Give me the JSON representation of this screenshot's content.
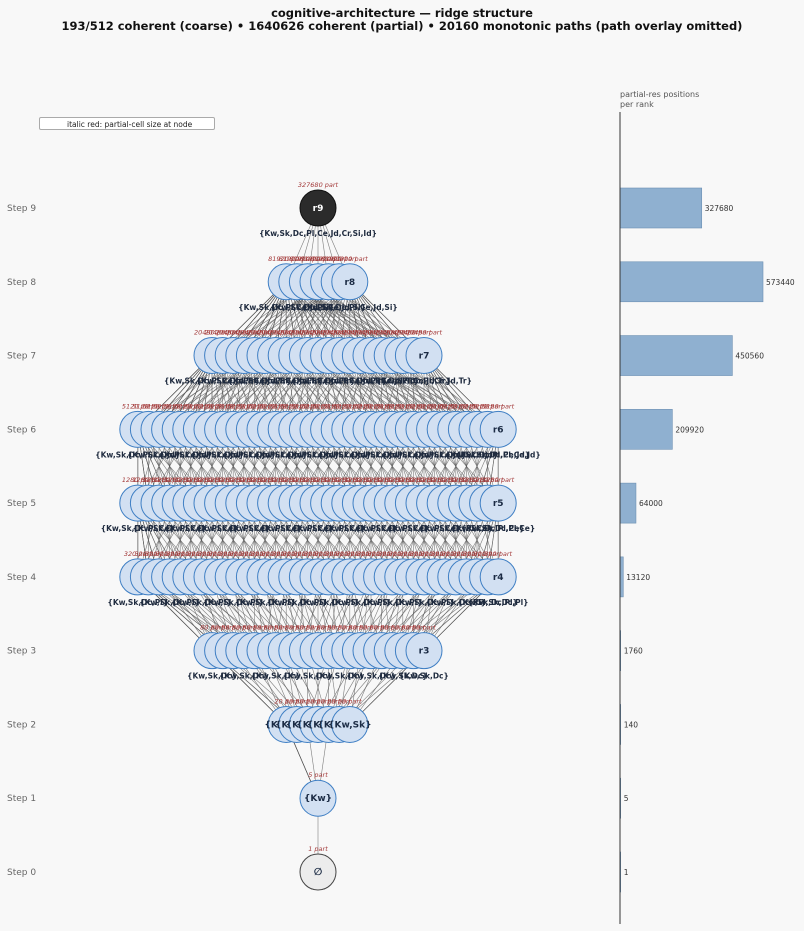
{
  "title": {
    "line1": "cognitive-architecture — ridge structure",
    "line2": "193/512 coherent (coarse)  •  1640626 coherent (partial)  •  20160 monotonic paths (path overlay omitted)"
  },
  "legend": {
    "text": "italic red: partial-cell size at node"
  },
  "side_panel": {
    "title_line1": "partial-res positions",
    "title_line2": "per rank"
  },
  "colors": {
    "background": "#f8f8f8",
    "node_fill": "#d2e0f2",
    "node_stroke": "#3f7fc4",
    "root_fill": "#2b2b2b",
    "empty_fill": "#ececec",
    "edge": "#555555",
    "partial_label": "#a33a3a",
    "bar_fill": "#8fb0d0",
    "bar_stroke": "#6d90b3"
  },
  "levels": [
    {
      "step": "Step 0",
      "node_count": 1,
      "node_label": "∅",
      "set_label": "",
      "part_label": "1 part",
      "partial_positions": 1
    },
    {
      "step": "Step 1",
      "node_count": 1,
      "node_label": "{Kw}",
      "set_label": "",
      "part_label": "5 part",
      "partial_positions": 5
    },
    {
      "step": "Step 2",
      "node_count": 7,
      "node_label": "{Kw,Sk}",
      "set_label": "",
      "part_label": "20 part",
      "partial_positions": 140
    },
    {
      "step": "Step 3",
      "node_count": 21,
      "node_label": "r3",
      "set_label": "{Kw,Sk,Dc}",
      "part_label": "80 part",
      "partial_positions": 1760
    },
    {
      "step": "Step 4",
      "node_count": 35,
      "node_label": "r4",
      "set_label": "{Kw,Sk,Dc,Pl}",
      "part_label": "320 part",
      "partial_positions": 13120
    },
    {
      "step": "Step 5",
      "node_count": 35,
      "node_label": "r5",
      "set_label": "{Kw,Sk,Dc,Pl,Ce}",
      "part_label": "1280 part",
      "partial_positions": 64000
    },
    {
      "step": "Step 6",
      "node_count": 35,
      "node_label": "r6",
      "set_label": "{Kw,Sk,Dc,Pl,Ce,Jd}",
      "part_label": "5120 part",
      "partial_positions": 209920
    },
    {
      "step": "Step 7",
      "node_count": 21,
      "node_label": "r7",
      "set_label": "{Kw,Sk,Dc,Pl,Ce,Jd,Tr}",
      "part_label": "20480 part",
      "partial_positions": 450560
    },
    {
      "step": "Step 8",
      "node_count": 7,
      "node_label": "r8",
      "set_label": "{Kw,Sk,Dc,Pl,Ce,Jd,Si}",
      "part_label": "81920 part",
      "partial_positions": 573440
    },
    {
      "step": "Step 9",
      "node_count": 1,
      "node_label": "r9",
      "set_label": "{Kw,Sk,Dc,Pl,Ce,Jd,Cr,Si,Id}",
      "part_label": "327680 part",
      "partial_positions": 327680
    }
  ],
  "bar_max": 573440
}
